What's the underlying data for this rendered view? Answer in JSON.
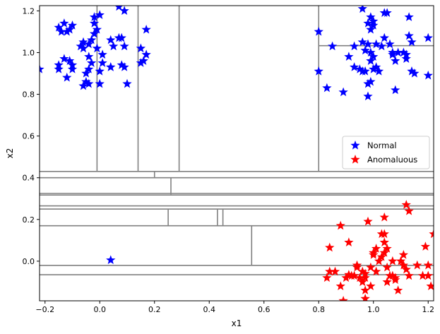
{
  "chart_data": {
    "type": "scatter",
    "title": "",
    "xlabel": "x1",
    "ylabel": "x2",
    "xlim": [
      -0.22,
      1.22
    ],
    "ylim": [
      -0.19,
      1.225
    ],
    "xticks": [
      -0.2,
      0.0,
      0.2,
      0.4,
      0.6,
      0.8,
      1.0,
      1.2
    ],
    "xtick_labels": [
      "−0.2",
      "0.0",
      "0.2",
      "0.4",
      "0.6",
      "0.8",
      "1.0",
      "1.2"
    ],
    "yticks": [
      0.0,
      0.2,
      0.4,
      0.6,
      0.8,
      1.0,
      1.2
    ],
    "ytick_labels": [
      "0.0",
      "0.2",
      "0.4",
      "0.6",
      "0.8",
      "1.0",
      "1.2"
    ],
    "grid": false,
    "legend": {
      "placement": "center-right"
    },
    "marker": "star",
    "series": [
      {
        "name": "Normal",
        "color": "#0000ff",
        "points": [
          [
            -0.22,
            0.92
          ],
          [
            -0.15,
            1.12
          ],
          [
            -0.13,
            1.14
          ],
          [
            -0.12,
            1.1
          ],
          [
            -0.14,
            1.1
          ],
          [
            -0.1,
            1.13
          ],
          [
            -0.11,
            1.11
          ],
          [
            -0.15,
            0.94
          ],
          [
            -0.15,
            0.92
          ],
          [
            -0.13,
            0.97
          ],
          [
            -0.11,
            0.96
          ],
          [
            -0.1,
            0.94
          ],
          [
            -0.1,
            0.92
          ],
          [
            -0.12,
            0.88
          ],
          [
            -0.07,
            1.03
          ],
          [
            -0.06,
            1.05
          ],
          [
            -0.06,
            1.02
          ],
          [
            -0.04,
            1.04
          ],
          [
            -0.02,
            1.09
          ],
          [
            -0.03,
            1.06
          ],
          [
            -0.02,
            1.14
          ],
          [
            -0.02,
            1.17
          ],
          [
            0.0,
            1.18
          ],
          [
            -0.01,
            1.11
          ],
          [
            -0.01,
            1.02
          ],
          [
            -0.04,
            0.98
          ],
          [
            -0.03,
            0.95
          ],
          [
            -0.04,
            0.92
          ],
          [
            -0.05,
            0.9
          ],
          [
            -0.05,
            0.86
          ],
          [
            -0.06,
            0.84
          ],
          [
            -0.04,
            0.85
          ],
          [
            0.0,
            0.91
          ],
          [
            0.0,
            0.85
          ],
          [
            0.01,
            0.95
          ],
          [
            0.01,
            0.99
          ],
          [
            0.04,
            1.06
          ],
          [
            0.05,
            1.03
          ],
          [
            0.07,
            1.07
          ],
          [
            0.08,
            1.07
          ],
          [
            0.09,
            1.03
          ],
          [
            0.04,
            0.93
          ],
          [
            0.04,
            0.93
          ],
          [
            0.08,
            0.94
          ],
          [
            0.09,
            0.93
          ],
          [
            0.1,
            0.85
          ],
          [
            0.07,
            1.22
          ],
          [
            0.09,
            1.2
          ],
          [
            0.15,
            1.02
          ],
          [
            0.17,
            0.99
          ],
          [
            0.16,
            0.96
          ],
          [
            0.15,
            0.95
          ],
          [
            0.17,
            1.11
          ],
          [
            0.8,
            1.1
          ],
          [
            0.8,
            0.91
          ],
          [
            0.83,
            0.83
          ],
          [
            0.85,
            1.03
          ],
          [
            0.89,
            0.81
          ],
          [
            0.91,
            0.98
          ],
          [
            0.93,
            1.03
          ],
          [
            0.93,
            0.93
          ],
          [
            0.95,
            0.92
          ],
          [
            0.96,
            0.91
          ],
          [
            0.97,
            0.91
          ],
          [
            0.96,
            1.21
          ],
          [
            0.98,
            1.14
          ],
          [
            0.99,
            1.17
          ],
          [
            1.0,
            1.13
          ],
          [
            1.0,
            1.15
          ],
          [
            0.99,
            1.11
          ],
          [
            0.96,
            1.05
          ],
          [
            0.98,
            1.04
          ],
          [
            0.97,
            1.01
          ],
          [
            0.99,
            1.0
          ],
          [
            1.0,
            0.98
          ],
          [
            0.99,
            0.96
          ],
          [
            1.0,
            0.92
          ],
          [
            0.99,
            0.86
          ],
          [
            0.98,
            0.85
          ],
          [
            0.98,
            0.79
          ],
          [
            1.01,
            0.93
          ],
          [
            1.02,
            0.91
          ],
          [
            1.01,
            1.04
          ],
          [
            1.03,
            1.03
          ],
          [
            1.04,
            1.07
          ],
          [
            1.04,
            1.19
          ],
          [
            1.05,
            1.19
          ],
          [
            1.06,
            1.04
          ],
          [
            1.07,
            1.0
          ],
          [
            1.07,
            0.99
          ],
          [
            1.08,
            0.96
          ],
          [
            1.08,
            0.82
          ],
          [
            1.09,
            1.0
          ],
          [
            1.11,
            1.0
          ],
          [
            1.12,
            0.99
          ],
          [
            1.12,
            0.97
          ],
          [
            1.13,
            1.17
          ],
          [
            1.13,
            1.08
          ],
          [
            1.14,
            1.05
          ],
          [
            1.14,
            0.91
          ],
          [
            1.15,
            0.9
          ],
          [
            1.2,
            1.07
          ],
          [
            1.2,
            0.89
          ],
          [
            0.04,
            0.005
          ]
        ]
      },
      {
        "name": "Anomaluous",
        "color": "#ff0000",
        "points": [
          [
            0.83,
            -0.08
          ],
          [
            0.84,
            -0.05
          ],
          [
            0.86,
            -0.05
          ],
          [
            0.84,
            0.065
          ],
          [
            0.88,
            0.17
          ],
          [
            0.88,
            -0.12
          ],
          [
            0.89,
            -0.19
          ],
          [
            0.9,
            -0.08
          ],
          [
            0.91,
            -0.065
          ],
          [
            0.92,
            -0.07
          ],
          [
            0.91,
            0.09
          ],
          [
            0.93,
            -0.07
          ],
          [
            0.94,
            -0.03
          ],
          [
            0.94,
            -0.02
          ],
          [
            0.95,
            -0.08
          ],
          [
            0.96,
            -0.05
          ],
          [
            0.96,
            -0.1
          ],
          [
            0.97,
            -0.06
          ],
          [
            0.97,
            -0.08
          ],
          [
            0.97,
            -0.14
          ],
          [
            0.97,
            -0.18
          ],
          [
            0.98,
            0.19
          ],
          [
            0.99,
            -0.03
          ],
          [
            0.99,
            -0.12
          ],
          [
            1.0,
            0.03
          ],
          [
            1.0,
            0.04
          ],
          [
            1.01,
            0.06
          ],
          [
            1.01,
            -0.05
          ],
          [
            1.02,
            0.0
          ],
          [
            1.03,
            0.13
          ],
          [
            1.03,
            0.02
          ],
          [
            1.04,
            0.13
          ],
          [
            1.04,
            0.21
          ],
          [
            1.04,
            0.09
          ],
          [
            1.04,
            0.04
          ],
          [
            1.05,
            0.06
          ],
          [
            1.05,
            -0.03
          ],
          [
            1.05,
            -0.1
          ],
          [
            1.06,
            -0.07
          ],
          [
            1.07,
            0.0
          ],
          [
            1.07,
            -0.07
          ],
          [
            1.08,
            -0.08
          ],
          [
            1.08,
            -0.09
          ],
          [
            1.09,
            -0.14
          ],
          [
            1.1,
            0.0
          ],
          [
            1.11,
            0.03
          ],
          [
            1.11,
            -0.02
          ],
          [
            1.12,
            -0.04
          ],
          [
            1.12,
            0.27
          ],
          [
            1.13,
            0.24
          ],
          [
            1.13,
            -0.07
          ],
          [
            1.16,
            -0.02
          ],
          [
            1.18,
            -0.07
          ],
          [
            1.19,
            0.07
          ],
          [
            1.2,
            -0.02
          ],
          [
            1.2,
            -0.07
          ],
          [
            1.21,
            -0.12
          ],
          [
            1.22,
            0.13
          ]
        ]
      }
    ],
    "splits": {
      "vertical": [
        [
          -0.01,
          0.43,
          1.225
        ],
        [
          0.14,
          0.43,
          1.225
        ],
        [
          0.29,
          0.43,
          1.225
        ],
        [
          0.8,
          0.43,
          1.225
        ],
        [
          0.2,
          0.4,
          0.43
        ],
        [
          0.26,
          0.32,
          0.4
        ],
        [
          0.25,
          0.17,
          0.25
        ],
        [
          0.43,
          0.17,
          0.25
        ],
        [
          0.45,
          0.17,
          0.25
        ],
        [
          0.555,
          -0.02,
          0.17
        ]
      ],
      "horizontal": [
        [
          1.033,
          0.8,
          1.22
        ],
        [
          0.43,
          -0.22,
          1.22
        ],
        [
          0.4,
          -0.22,
          1.22
        ],
        [
          0.325,
          -0.22,
          1.22
        ],
        [
          0.317,
          -0.22,
          1.22
        ],
        [
          0.265,
          -0.22,
          1.22
        ],
        [
          0.25,
          -0.22,
          1.22
        ],
        [
          0.17,
          -0.22,
          1.22
        ],
        [
          -0.02,
          -0.22,
          1.22
        ],
        [
          -0.065,
          -0.22,
          1.22
        ]
      ],
      "color": "#808080"
    }
  }
}
